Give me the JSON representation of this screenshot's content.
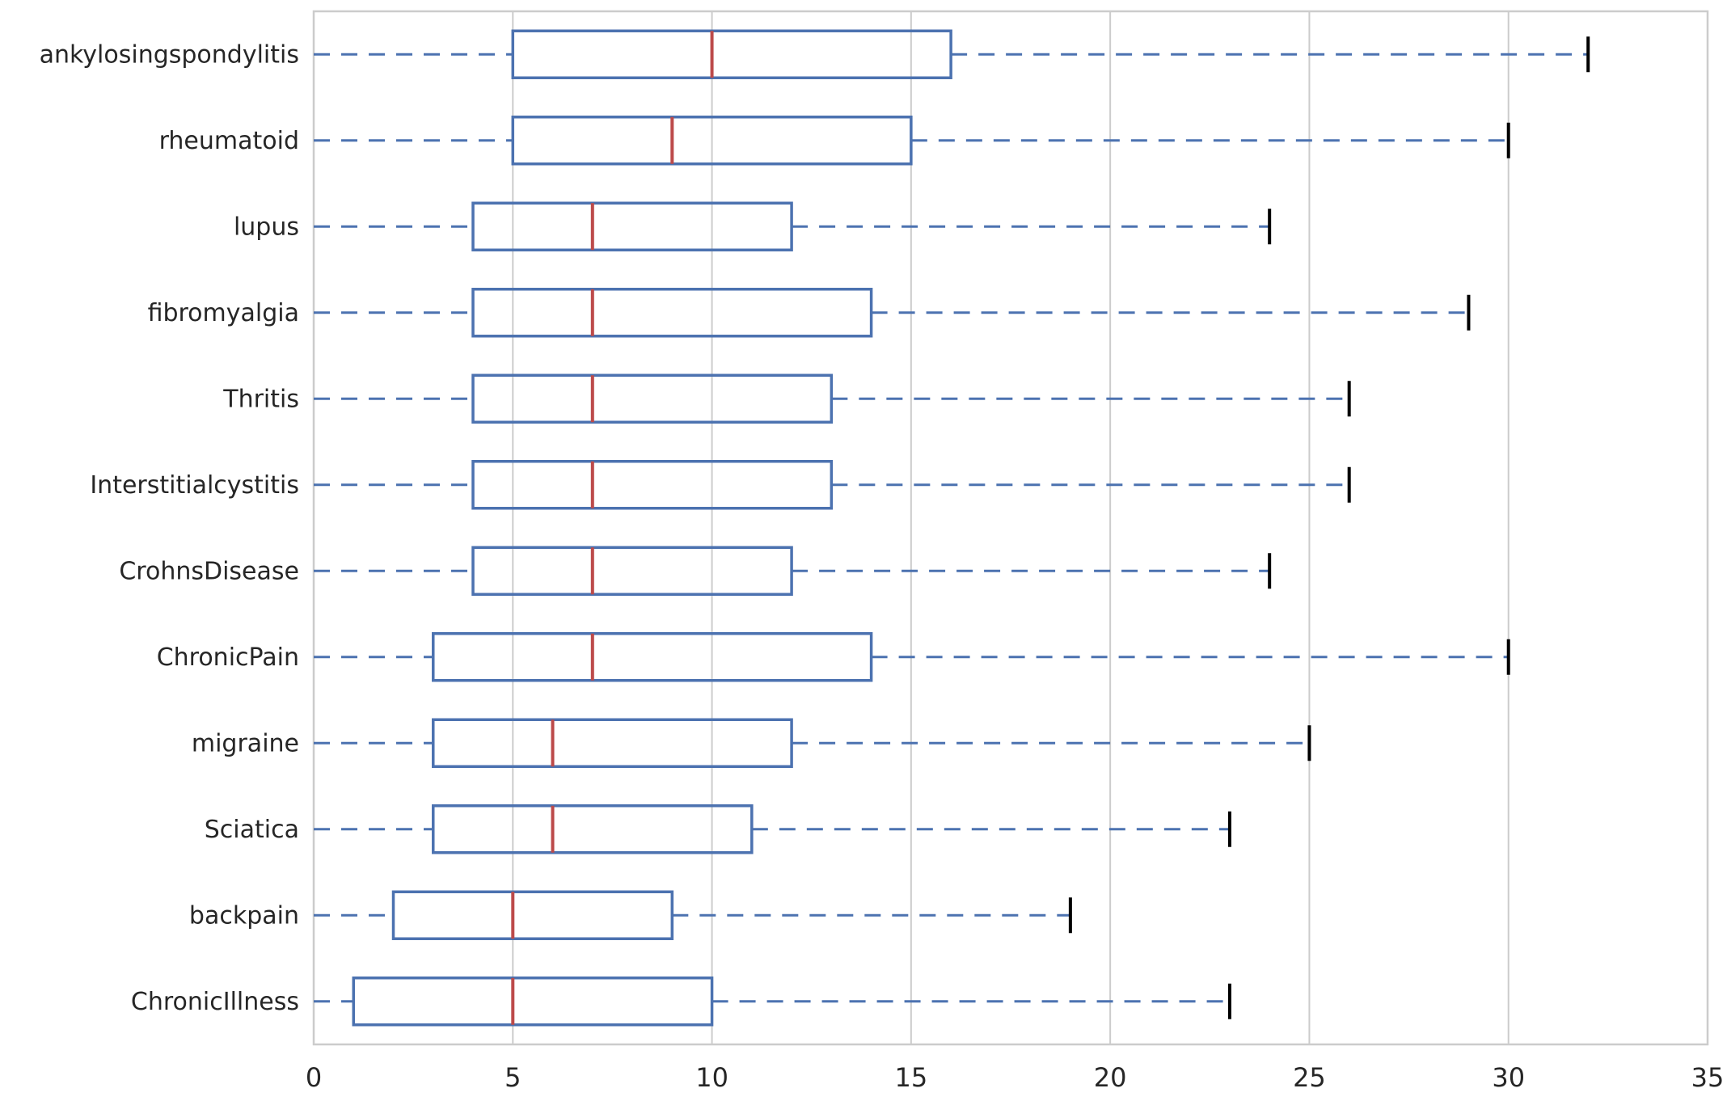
{
  "chart_data": {
    "type": "boxplot",
    "orientation": "horizontal",
    "title": "",
    "xlabel": "",
    "ylabel": "",
    "xlim": [
      0,
      35
    ],
    "x_ticks": [
      0,
      5,
      10,
      15,
      20,
      25,
      30,
      35
    ],
    "grid": true,
    "categories": [
      "ankylosingspondylitis",
      "rheumatoid",
      "lupus",
      "fibromyalgia",
      "Thritis",
      "Interstitialcystitis",
      "CrohnsDisease",
      "ChronicPain",
      "migraine",
      "Sciatica",
      "backpain",
      "ChronicIllness"
    ],
    "series": [
      {
        "name": "ankylosingspondylitis",
        "whisker_low": 0,
        "q1": 5,
        "median": 10,
        "q3": 16,
        "whisker_high": 32
      },
      {
        "name": "rheumatoid",
        "whisker_low": 0,
        "q1": 5,
        "median": 9,
        "q3": 15,
        "whisker_high": 30
      },
      {
        "name": "lupus",
        "whisker_low": 0,
        "q1": 4,
        "median": 7,
        "q3": 12,
        "whisker_high": 24
      },
      {
        "name": "fibromyalgia",
        "whisker_low": 0,
        "q1": 4,
        "median": 7,
        "q3": 14,
        "whisker_high": 29
      },
      {
        "name": "Thritis",
        "whisker_low": 0,
        "q1": 4,
        "median": 7,
        "q3": 13,
        "whisker_high": 26
      },
      {
        "name": "Interstitialcystitis",
        "whisker_low": 0,
        "q1": 4,
        "median": 7,
        "q3": 13,
        "whisker_high": 26
      },
      {
        "name": "CrohnsDisease",
        "whisker_low": 0,
        "q1": 4,
        "median": 7,
        "q3": 12,
        "whisker_high": 24
      },
      {
        "name": "ChronicPain",
        "whisker_low": 0,
        "q1": 3,
        "median": 7,
        "q3": 14,
        "whisker_high": 30
      },
      {
        "name": "migraine",
        "whisker_low": 0,
        "q1": 3,
        "median": 6,
        "q3": 12,
        "whisker_high": 25
      },
      {
        "name": "Sciatica",
        "whisker_low": 0,
        "q1": 3,
        "median": 6,
        "q3": 11,
        "whisker_high": 23
      },
      {
        "name": "backpain",
        "whisker_low": 0,
        "q1": 2,
        "median": 5,
        "q3": 9,
        "whisker_high": 19
      },
      {
        "name": "ChronicIllness",
        "whisker_low": 0,
        "q1": 1,
        "median": 5,
        "q3": 10,
        "whisker_high": 23
      }
    ],
    "colors": {
      "box": "#4C72B0",
      "median": "#BC4A4A",
      "whisker": "#4C72B0",
      "cap": "#000000",
      "grid": "#CCCCCC",
      "frame": "#CCCCCC",
      "tick_text": "#262626",
      "background": "#FFFFFF"
    }
  }
}
